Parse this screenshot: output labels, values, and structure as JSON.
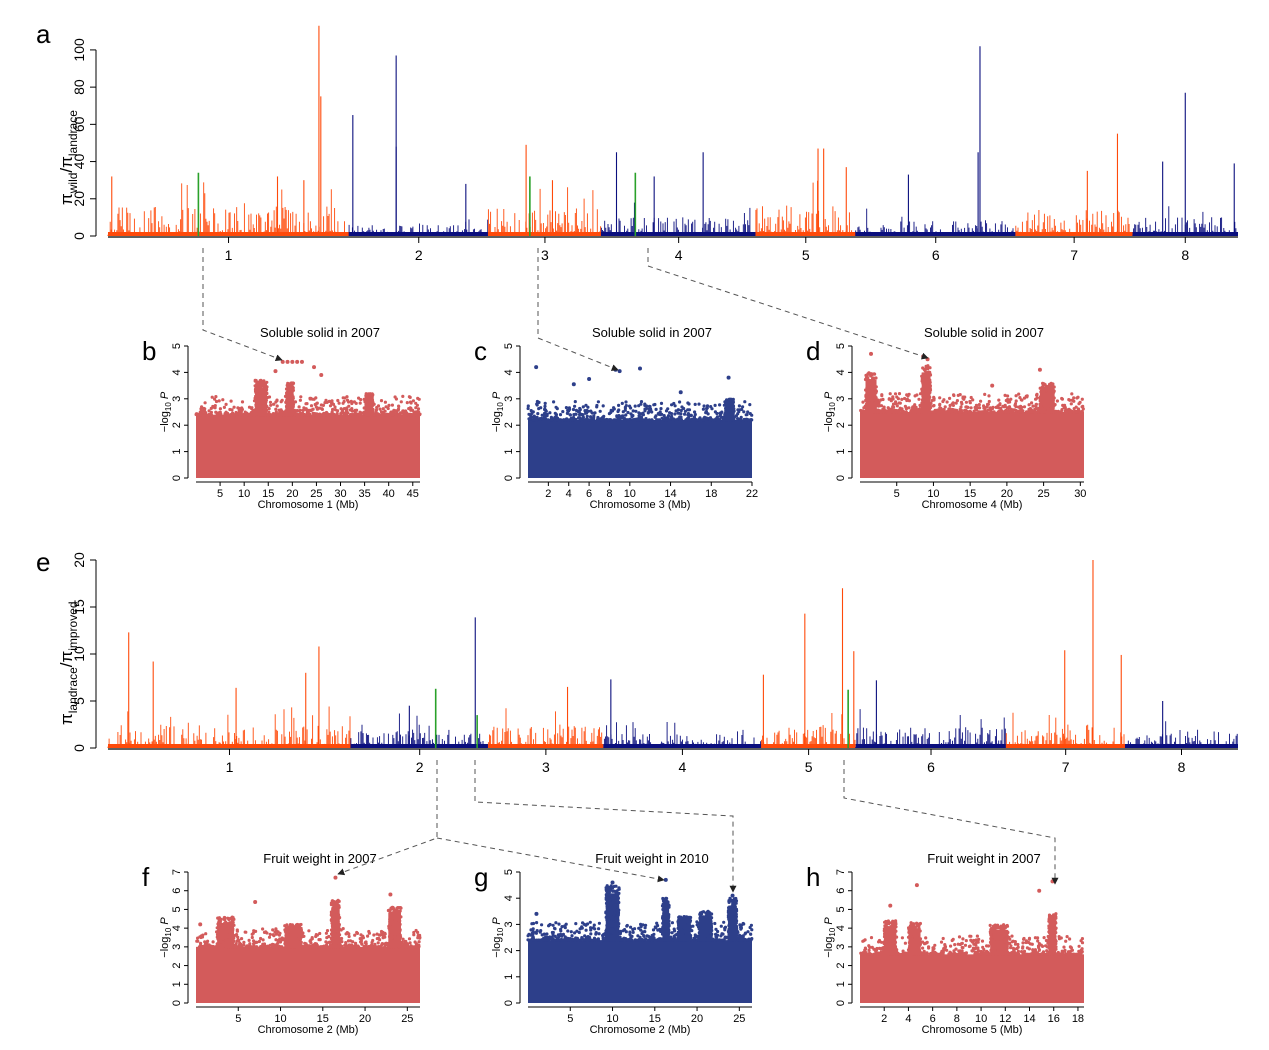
{
  "colors": {
    "orange": "#ff4a0a",
    "navy": "#0b0f7e",
    "green": "#2aa12a",
    "salmon": "#d35b5b",
    "blue": "#2d3f8a",
    "arrow": "#555555"
  },
  "chart_data": [
    {
      "id": "a",
      "panel_label": "a",
      "type": "bar",
      "ylabel_main": "π",
      "ylabel_sub1": "wild",
      "ylabel_slash": "/π",
      "ylabel_sub2": "landrace",
      "xlabel": "",
      "ylim": [
        0,
        115
      ],
      "yticks": [
        0,
        20,
        40,
        60,
        80,
        100
      ],
      "chromosomes": [
        "1",
        "2",
        "3",
        "4",
        "5",
        "6",
        "7",
        "8"
      ],
      "chrom_spans": [
        [
          0,
          1.28
        ],
        [
          1.28,
          2.02
        ],
        [
          2.02,
          2.62
        ],
        [
          2.62,
          3.44
        ],
        [
          3.44,
          3.97
        ],
        [
          3.97,
          4.82
        ],
        [
          4.82,
          5.44
        ],
        [
          5.44,
          6.0
        ]
      ],
      "chrom_colors": [
        "orange",
        "navy",
        "orange",
        "navy",
        "orange",
        "navy",
        "orange",
        "navy"
      ],
      "baseline_max": [
        16,
        6,
        15,
        10,
        16,
        8,
        14,
        10
      ],
      "peaks": [
        {
          "x": 0.02,
          "y": 32
        },
        {
          "x": 0.48,
          "y": 34,
          "green": true
        },
        {
          "x": 0.9,
          "y": 32
        },
        {
          "x": 1.12,
          "y": 113
        },
        {
          "x": 1.13,
          "y": 75
        },
        {
          "x": 1.04,
          "y": 30
        },
        {
          "x": 1.3,
          "y": 65
        },
        {
          "x": 1.53,
          "y": 97
        },
        {
          "x": 1.53,
          "y": 48
        },
        {
          "x": 1.9,
          "y": 28
        },
        {
          "x": 2.22,
          "y": 49
        },
        {
          "x": 2.24,
          "y": 32,
          "green": true
        },
        {
          "x": 2.36,
          "y": 30
        },
        {
          "x": 2.7,
          "y": 45
        },
        {
          "x": 2.8,
          "y": 34,
          "green": true
        },
        {
          "x": 2.9,
          "y": 32
        },
        {
          "x": 3.16,
          "y": 45
        },
        {
          "x": 3.77,
          "y": 47
        },
        {
          "x": 3.8,
          "y": 47
        },
        {
          "x": 3.92,
          "y": 37
        },
        {
          "x": 4.25,
          "y": 33
        },
        {
          "x": 4.62,
          "y": 45
        },
        {
          "x": 4.63,
          "y": 102
        },
        {
          "x": 5.2,
          "y": 35
        },
        {
          "x": 5.36,
          "y": 55
        },
        {
          "x": 5.6,
          "y": 40
        },
        {
          "x": 5.72,
          "y": 77
        },
        {
          "x": 5.98,
          "y": 39
        }
      ]
    },
    {
      "id": "e",
      "panel_label": "e",
      "type": "bar",
      "ylabel_main": "π",
      "ylabel_sub1": "landrace",
      "ylabel_slash": "/π",
      "ylabel_sub2": "improved",
      "xlabel": "",
      "ylim": [
        0,
        20
      ],
      "yticks": [
        0,
        5,
        10,
        15,
        20
      ],
      "chromosomes": [
        "1",
        "2",
        "3",
        "4",
        "5",
        "6",
        "7",
        "8"
      ],
      "chrom_spans": [
        [
          0,
          1.29
        ],
        [
          1.29,
          2.02
        ],
        [
          2.02,
          2.63
        ],
        [
          2.63,
          3.47
        ],
        [
          3.47,
          3.97
        ],
        [
          3.97,
          4.77
        ],
        [
          4.77,
          5.4
        ],
        [
          5.4,
          6.0
        ]
      ],
      "chrom_colors": [
        "orange",
        "navy",
        "orange",
        "navy",
        "orange",
        "navy",
        "orange",
        "navy"
      ],
      "baseline_max": [
        2.5,
        2.0,
        2.3,
        1.5,
        2.5,
        2.2,
        2.5,
        2.0
      ],
      "peaks": [
        {
          "x": 0.11,
          "y": 12.3
        },
        {
          "x": 0.24,
          "y": 9.2
        },
        {
          "x": 0.68,
          "y": 6.4
        },
        {
          "x": 1.05,
          "y": 8.0
        },
        {
          "x": 1.12,
          "y": 10.8
        },
        {
          "x": 1.6,
          "y": 4.5
        },
        {
          "x": 1.74,
          "y": 6.3,
          "green": true
        },
        {
          "x": 1.95,
          "y": 13.9
        },
        {
          "x": 1.96,
          "y": 3.5,
          "green": true
        },
        {
          "x": 2.44,
          "y": 6.5
        },
        {
          "x": 2.67,
          "y": 7.3
        },
        {
          "x": 3.48,
          "y": 7.8
        },
        {
          "x": 3.7,
          "y": 14.3
        },
        {
          "x": 3.9,
          "y": 17.0
        },
        {
          "x": 3.93,
          "y": 6.2,
          "green": true
        },
        {
          "x": 3.96,
          "y": 10.3
        },
        {
          "x": 4.08,
          "y": 7.2
        },
        {
          "x": 5.08,
          "y": 10.4
        },
        {
          "x": 5.23,
          "y": 20.0
        },
        {
          "x": 5.38,
          "y": 9.9
        },
        {
          "x": 5.6,
          "y": 5.0
        }
      ]
    },
    {
      "id": "b",
      "panel_label": "b",
      "type": "scatter",
      "title": "Soluble solid in 2007",
      "xlabel": "Chromosome 1 (Mb)",
      "ylabel_a": "−log",
      "ylabel_sub": "10",
      "ylabel_b": " P",
      "xlim": [
        0,
        46.5
      ],
      "ylim": [
        0,
        5
      ],
      "xticks": [
        5,
        10,
        15,
        20,
        25,
        30,
        35,
        40,
        45
      ],
      "yticks": [
        0,
        1,
        2,
        3,
        4,
        5
      ],
      "color": "salmon",
      "base_top": 2.4,
      "seed": 11,
      "clusters": [
        {
          "x": 13.5,
          "width": 2.5,
          "top": 3.7
        },
        {
          "x": 19.5,
          "width": 1.5,
          "top": 3.6
        },
        {
          "x": 36,
          "width": 1.5,
          "top": 3.2
        }
      ],
      "highlights": [
        {
          "x": 18,
          "y": 4.4
        },
        {
          "x": 19,
          "y": 4.4
        },
        {
          "x": 20,
          "y": 4.4
        },
        {
          "x": 21,
          "y": 4.4
        },
        {
          "x": 22,
          "y": 4.4
        },
        {
          "x": 24.5,
          "y": 4.2
        },
        {
          "x": 16.5,
          "y": 4.05
        },
        {
          "x": 26,
          "y": 3.9
        }
      ]
    },
    {
      "id": "c",
      "panel_label": "c",
      "type": "scatter",
      "title": "Soluble solid in 2007",
      "xlabel": "Chromosome 3 (Mb)",
      "ylabel_a": "−log",
      "ylabel_sub": "10",
      "ylabel_b": " P",
      "xlim": [
        0,
        22
      ],
      "ylim": [
        0,
        5
      ],
      "xticks": [
        2,
        4,
        6,
        8,
        10,
        14,
        18,
        22
      ],
      "yticks": [
        0,
        1,
        2,
        3,
        4,
        5
      ],
      "color": "blue",
      "base_top": 2.2,
      "seed": 23,
      "clusters": [
        {
          "x": 19.8,
          "width": 0.8,
          "top": 3.0
        }
      ],
      "highlights": [
        {
          "x": 0.8,
          "y": 4.2
        },
        {
          "x": 8.6,
          "y": 4.1
        },
        {
          "x": 9.0,
          "y": 4.05
        },
        {
          "x": 11.0,
          "y": 4.15
        },
        {
          "x": 4.5,
          "y": 3.55
        },
        {
          "x": 6.0,
          "y": 3.75
        },
        {
          "x": 15.0,
          "y": 3.25
        },
        {
          "x": 19.7,
          "y": 3.8
        }
      ]
    },
    {
      "id": "d",
      "panel_label": "d",
      "type": "scatter",
      "title": "Soluble solid in 2007",
      "xlabel": "Chromosome 4 (Mb)",
      "ylabel_a": "−log",
      "ylabel_sub": "10",
      "ylabel_b": " P",
      "xlim": [
        0,
        30.5
      ],
      "ylim": [
        0,
        5
      ],
      "xticks": [
        5,
        10,
        15,
        20,
        25,
        30
      ],
      "yticks": [
        0,
        1,
        2,
        3,
        4,
        5
      ],
      "color": "salmon",
      "base_top": 2.5,
      "seed": 37,
      "clusters": [
        {
          "x": 1.5,
          "width": 1.5,
          "top": 4.0
        },
        {
          "x": 9.0,
          "width": 1.2,
          "top": 4.3
        },
        {
          "x": 25.5,
          "width": 2.0,
          "top": 3.6
        }
      ],
      "highlights": [
        {
          "x": 8.6,
          "y": 4.6
        },
        {
          "x": 9.2,
          "y": 4.5
        },
        {
          "x": 1.5,
          "y": 4.7
        },
        {
          "x": 24.5,
          "y": 4.1
        },
        {
          "x": 18.0,
          "y": 3.5
        }
      ]
    },
    {
      "id": "f",
      "panel_label": "f",
      "type": "scatter",
      "title": "Fruit weight in 2007",
      "xlabel": "Chromosome 2 (Mb)",
      "ylabel_a": "−log",
      "ylabel_sub": "10",
      "ylabel_b": " P",
      "xlim": [
        0,
        26.5
      ],
      "ylim": [
        0,
        7
      ],
      "xticks": [
        5,
        10,
        15,
        20,
        25
      ],
      "yticks": [
        0,
        1,
        2,
        3,
        4,
        5,
        6,
        7
      ],
      "color": "salmon",
      "base_top": 3.0,
      "seed": 51,
      "clusters": [
        {
          "x": 16.5,
          "width": 1.0,
          "top": 5.5
        },
        {
          "x": 23.5,
          "width": 1.5,
          "top": 5.2
        },
        {
          "x": 3.5,
          "width": 2.0,
          "top": 4.6
        },
        {
          "x": 11.5,
          "width": 2.0,
          "top": 4.2
        }
      ],
      "highlights": [
        {
          "x": 16.5,
          "y": 6.7
        },
        {
          "x": 23.0,
          "y": 5.8
        },
        {
          "x": 7.0,
          "y": 5.4
        },
        {
          "x": 0.5,
          "y": 4.2
        }
      ]
    },
    {
      "id": "g",
      "panel_label": "g",
      "type": "scatter",
      "title": "Fruit weight in 2010",
      "xlabel": "Chromosome 2 (Mb)",
      "ylabel_a": "−log",
      "ylabel_sub": "10",
      "ylabel_b": " P",
      "xlim": [
        0,
        26.5
      ],
      "ylim": [
        0,
        5
      ],
      "xticks": [
        5,
        10,
        15,
        20,
        25
      ],
      "yticks": [
        0,
        1,
        2,
        3,
        4,
        5
      ],
      "color": "blue",
      "base_top": 2.4,
      "seed": 67,
      "clusters": [
        {
          "x": 10.0,
          "width": 1.6,
          "top": 4.5
        },
        {
          "x": 16.3,
          "width": 0.8,
          "top": 4.0
        },
        {
          "x": 24.2,
          "width": 1.0,
          "top": 4.0
        },
        {
          "x": 18.5,
          "width": 1.5,
          "top": 3.3
        },
        {
          "x": 21.0,
          "width": 1.5,
          "top": 3.5
        }
      ],
      "highlights": [
        {
          "x": 16.3,
          "y": 4.7
        },
        {
          "x": 10.0,
          "y": 4.6
        },
        {
          "x": 24.2,
          "y": 4.1
        },
        {
          "x": 1.0,
          "y": 3.4
        }
      ]
    },
    {
      "id": "h",
      "panel_label": "h",
      "type": "scatter",
      "title": "Fruit weight in 2007",
      "xlabel": "Chromosome 5 (Mb)",
      "ylabel_a": "−log",
      "ylabel_sub": "10",
      "ylabel_b": " P",
      "xlim": [
        0,
        18.5
      ],
      "ylim": [
        0,
        7
      ],
      "xticks": [
        2,
        4,
        6,
        8,
        10,
        12,
        14,
        16,
        18
      ],
      "yticks": [
        0,
        1,
        2,
        3,
        4,
        5,
        6,
        7
      ],
      "color": "salmon",
      "base_top": 2.6,
      "seed": 83,
      "clusters": [
        {
          "x": 15.9,
          "width": 0.6,
          "top": 4.8
        },
        {
          "x": 4.5,
          "width": 1.0,
          "top": 4.3
        },
        {
          "x": 11.5,
          "width": 1.5,
          "top": 4.2
        },
        {
          "x": 2.5,
          "width": 1.0,
          "top": 4.4
        }
      ],
      "highlights": [
        {
          "x": 15.9,
          "y": 6.5
        },
        {
          "x": 4.7,
          "y": 6.3
        },
        {
          "x": 14.8,
          "y": 6.0
        },
        {
          "x": 2.5,
          "y": 5.2
        }
      ]
    }
  ]
}
